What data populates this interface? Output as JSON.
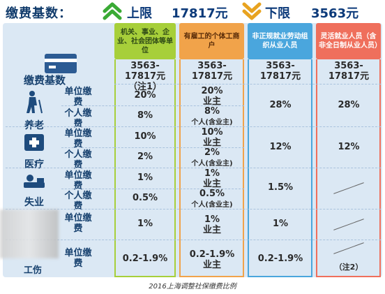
{
  "header": {
    "label": "缴费基数：",
    "upper_label": "上限",
    "upper_value": "17817元",
    "lower_label": "下限",
    "lower_value": "3563元",
    "up_icon": "double-chevron-up-icon",
    "down_icon": "double-chevron-down-icon",
    "up_color": "#3aaa35",
    "down_color": "#e8a320"
  },
  "row_labels": {
    "base": "缴费基数",
    "pension": "养老",
    "medical": "医疗",
    "unemployment": "失业",
    "injury": "工伤",
    "unit": "单位缴费",
    "personal": "个人缴费"
  },
  "columns": [
    {
      "header": "机关、事业、企业、社会团体等单位",
      "color": "#a7cf3a"
    },
    {
      "header": "有雇工的个体工商户",
      "color": "#f1a34a"
    },
    {
      "header": "非正规就业劳动组织从业人员",
      "color": "#4aa6dd"
    },
    {
      "header": "灵活就业人员（含非全日制从业人员）",
      "color": "#ef6f5c"
    }
  ],
  "cells": {
    "base": [
      "3563-17817元（注1）",
      "3563-17817元",
      "3563-17817元",
      "3563-17817元"
    ],
    "pension_unit": [
      "20%",
      "20%",
      "业主"
    ],
    "pension_personal": [
      "8%",
      "8%",
      "个人(含业主)"
    ],
    "pension_col3": "28%",
    "pension_col4": "28%",
    "medical_unit": [
      "10%",
      "10%",
      "业主"
    ],
    "medical_personal": [
      "2%",
      "2%",
      "个人(含业主)"
    ],
    "medical_col3": "12%",
    "medical_col4": "12%",
    "unemp_unit": [
      "1%",
      "1%",
      "业主"
    ],
    "unemp_personal": [
      "0.5%",
      "0.5%",
      "个人(含业主)"
    ],
    "unemp_col3": "1.5%",
    "maternity_unit": [
      "1%",
      "1%",
      "业主"
    ],
    "maternity_col3": "1%",
    "injury_unit": [
      "0.2-1.9%",
      "0.2-1.9%",
      "业主"
    ],
    "injury_col3": "0.2-1.9%",
    "injury_col4": "（注2）"
  },
  "caption": "2016上海调整社保缴费比例"
}
